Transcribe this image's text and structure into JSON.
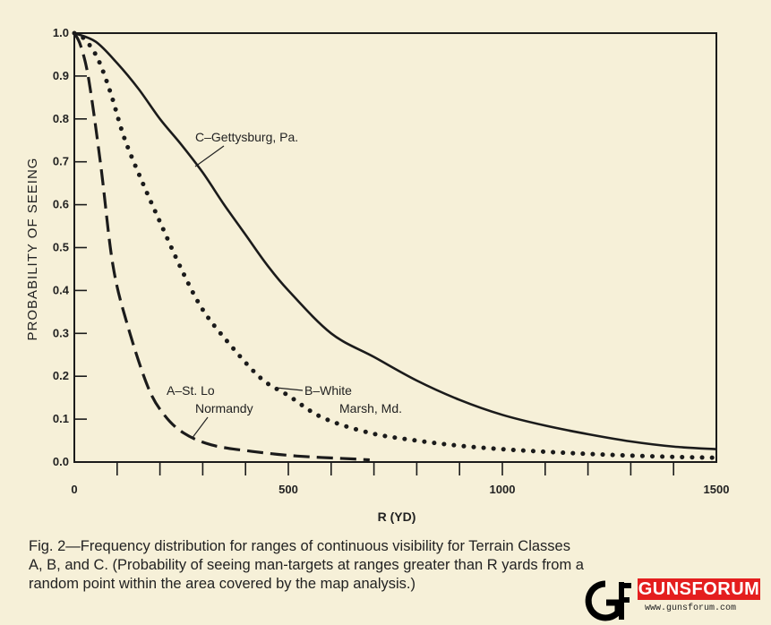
{
  "chart_data": {
    "type": "line",
    "title": "",
    "xlabel": "R (YD)",
    "ylabel": "PROBABILITY OF SEEING",
    "xlim": [
      0,
      1500
    ],
    "ylim": [
      0,
      1.0
    ],
    "x_ticks": [
      "0",
      "500",
      "1000",
      "1500"
    ],
    "y_ticks": [
      "0.0",
      "0.1",
      "0.2",
      "0.3",
      "0.4",
      "0.5",
      "0.6",
      "0.7",
      "0.8",
      "0.9",
      "1.0"
    ],
    "grid": false,
    "series": [
      {
        "name": "C-Gettysburg, Pa.",
        "style": "solid",
        "x": [
          0,
          50,
          100,
          150,
          200,
          250,
          300,
          350,
          400,
          450,
          500,
          600,
          700,
          800,
          900,
          1000,
          1100,
          1200,
          1300,
          1400,
          1500
        ],
        "y": [
          1.0,
          0.98,
          0.93,
          0.87,
          0.8,
          0.74,
          0.675,
          0.6,
          0.53,
          0.46,
          0.4,
          0.3,
          0.245,
          0.19,
          0.145,
          0.11,
          0.085,
          0.065,
          0.048,
          0.036,
          0.03
        ]
      },
      {
        "name": "B-White Marsh, Md.",
        "style": "dotted",
        "x": [
          0,
          25,
          55,
          85,
          117,
          160,
          200,
          250,
          297,
          350,
          434,
          500,
          579,
          690,
          800,
          900,
          1000,
          1100,
          1200,
          1300,
          1400,
          1500
        ],
        "y": [
          1.0,
          0.985,
          0.94,
          0.86,
          0.755,
          0.65,
          0.56,
          0.45,
          0.36,
          0.29,
          0.197,
          0.155,
          0.104,
          0.068,
          0.05,
          0.038,
          0.03,
          0.024,
          0.019,
          0.015,
          0.012,
          0.01
        ]
      },
      {
        "name": "A-St. Lo Normandy",
        "style": "dashed",
        "x": [
          0,
          15,
          34,
          62,
          90,
          124,
          172,
          210,
          255,
          320,
          414,
          520,
          655,
          690
        ],
        "y": [
          1.0,
          0.97,
          0.89,
          0.69,
          0.46,
          0.32,
          0.175,
          0.11,
          0.068,
          0.04,
          0.025,
          0.014,
          0.007,
          0.005
        ]
      }
    ],
    "annotations": [
      {
        "text": "C–Gettysburg, Pa."
      },
      {
        "text_lines": [
          "B–White",
          "Marsh, Md."
        ]
      },
      {
        "text_lines": [
          "A–St. Lo",
          "Normandy"
        ]
      }
    ]
  },
  "caption": {
    "lines": [
      "Fig. 2—Frequency distribution for ranges of continuous visibility for Terrain Classes",
      "A, B, and C.  (Probability of seeing man-targets at ranges greater than R yards from a",
      "random point within the area covered by the map analysis.)"
    ]
  },
  "watermark": {
    "name": "GUNSFORUM",
    "url": "www.gunsforum.com",
    "logo": "GF"
  }
}
